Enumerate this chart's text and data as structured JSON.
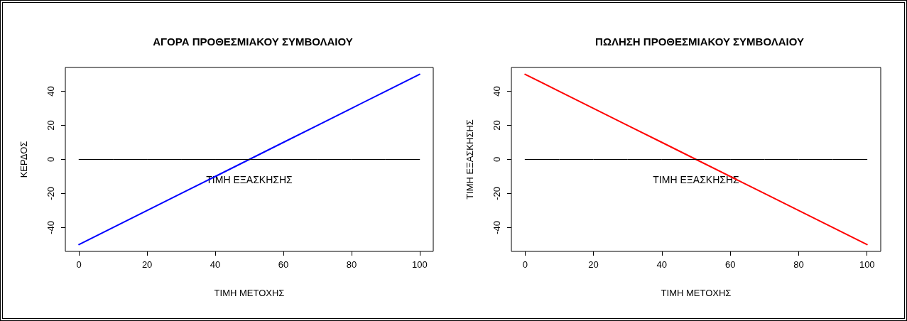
{
  "chart_data": [
    {
      "type": "line",
      "title": "ΑΓΟΡΑ ΠΡΟΘΕΣΜΙΑΚΟΥ ΣΥΜΒΟΛΑΙΟΥ",
      "xlabel": "ΤΙΜΗ ΜΕΤΟΧΗΣ",
      "ylabel": "ΚΕΡΔΟΣ",
      "x": [
        0,
        10,
        20,
        30,
        40,
        50,
        60,
        70,
        80,
        90,
        100
      ],
      "series": [
        {
          "color": "#0000ff",
          "values": [
            -50,
            -40,
            -30,
            -20,
            -10,
            0,
            10,
            20,
            30,
            40,
            50
          ]
        },
        {
          "color": "#000000",
          "values": [
            0,
            0,
            0,
            0,
            0,
            0,
            0,
            0,
            0,
            0,
            0
          ]
        }
      ],
      "xlim": [
        -4,
        104
      ],
      "xticks": [
        0,
        20,
        40,
        60,
        80,
        100
      ],
      "ylim": [
        -54,
        54
      ],
      "yticks": [
        -40,
        -20,
        0,
        20,
        40
      ],
      "grid": false,
      "marker": "none",
      "line_style": "solid",
      "annotations": [
        "ΤΙΜΗ ΕΞΑΣΚΗΣΗΣ"
      ]
    },
    {
      "type": "line",
      "title": "ΠΩΛΗΣΗ ΠΡΟΘΕΣΜΙΑΚΟΥ ΣΥΜΒΟΛΑΙΟΥ",
      "xlabel": "ΤΙΜΗ ΜΕΤΟΧΗΣ",
      "ylabel": "ΤΙΜΗ ΕΞΑΣΚΗΣΗΣ",
      "x": [
        0,
        10,
        20,
        30,
        40,
        50,
        60,
        70,
        80,
        90,
        100
      ],
      "series": [
        {
          "color": "#ff0000",
          "values": [
            50,
            40,
            30,
            20,
            10,
            0,
            -10,
            -20,
            -30,
            -40,
            -50
          ]
        },
        {
          "color": "#000000",
          "values": [
            0,
            0,
            0,
            0,
            0,
            0,
            0,
            0,
            0,
            0,
            0
          ]
        }
      ],
      "xlim": [
        -4,
        104
      ],
      "xticks": [
        0,
        20,
        40,
        60,
        80,
        100
      ],
      "ylim": [
        -54,
        54
      ],
      "yticks": [
        -40,
        -20,
        0,
        20,
        40
      ],
      "grid": false,
      "marker": "none",
      "line_style": "solid",
      "annotations": [
        "ΤΙΜΗ ΕΞΑΣΚΗΣΗΣ"
      ]
    }
  ]
}
